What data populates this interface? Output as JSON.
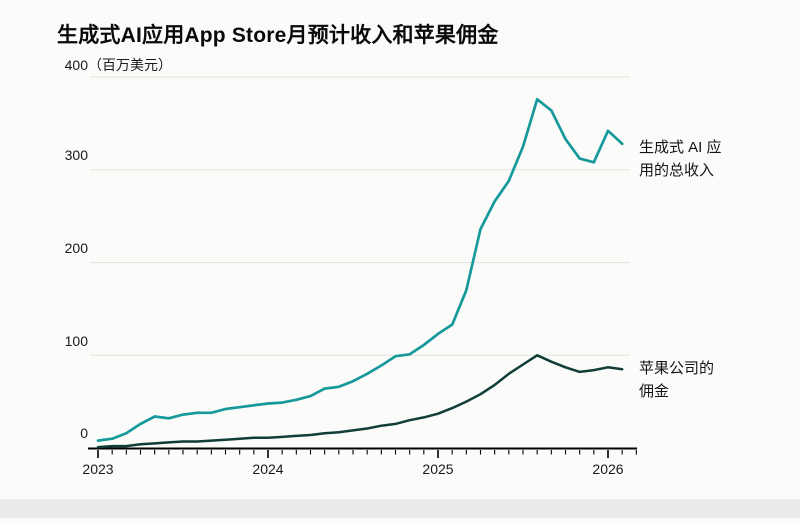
{
  "header": {
    "title": "生成式AI应用App Store月预计收入和苹果佣金"
  },
  "y_axis": {
    "ticks": [
      "400",
      "300",
      "200",
      "100",
      "0"
    ],
    "unit": "（百万美元）"
  },
  "x_axis": {
    "years": [
      "2023",
      "2024",
      "2025",
      "2026"
    ]
  },
  "annotations": {
    "revenue": [
      "生成式 AI 应",
      "用的总收入"
    ],
    "commission": [
      "苹果公司的",
      "佣金"
    ]
  },
  "colors": {
    "revenue_line": "#16999b",
    "commission_line": "#0f3d38",
    "gridline": "#e3e3e0",
    "axis": "#000000"
  },
  "chart_data": {
    "type": "line",
    "title": "生成式AI应用App Store月预计收入和苹果佣金",
    "ylabel": "百万美元",
    "ylim": [
      0,
      400
    ],
    "yticks": [
      0,
      100,
      200,
      300,
      400
    ],
    "grid": "horizontal",
    "legend_position": "right-of-line-labels",
    "frequency": "monthly",
    "x_range": [
      "2023-01",
      "2026-02"
    ],
    "x_year_ticks": [
      "2023",
      "2024",
      "2025",
      "2026"
    ],
    "series": [
      {
        "name": "生成式 AI 应用的总收入",
        "color": "#16999b",
        "values": [
          8,
          10,
          16,
          26,
          34,
          32,
          36,
          38,
          38,
          42,
          44,
          46,
          48,
          49,
          52,
          56,
          64,
          66,
          72,
          80,
          89,
          99,
          101,
          111,
          123,
          133,
          170,
          236,
          266,
          288,
          325,
          376,
          364,
          333,
          312,
          308,
          342,
          328
        ]
      },
      {
        "name": "苹果公司的佣金",
        "color": "#0f3d38",
        "values": [
          1,
          2,
          2,
          4,
          5,
          6,
          7,
          7,
          8,
          9,
          10,
          11,
          11,
          12,
          13,
          14,
          16,
          17,
          19,
          21,
          24,
          26,
          30,
          33,
          37,
          43,
          50,
          58,
          68,
          80,
          90,
          100,
          93,
          87,
          82,
          84,
          87,
          85
        ]
      }
    ]
  }
}
